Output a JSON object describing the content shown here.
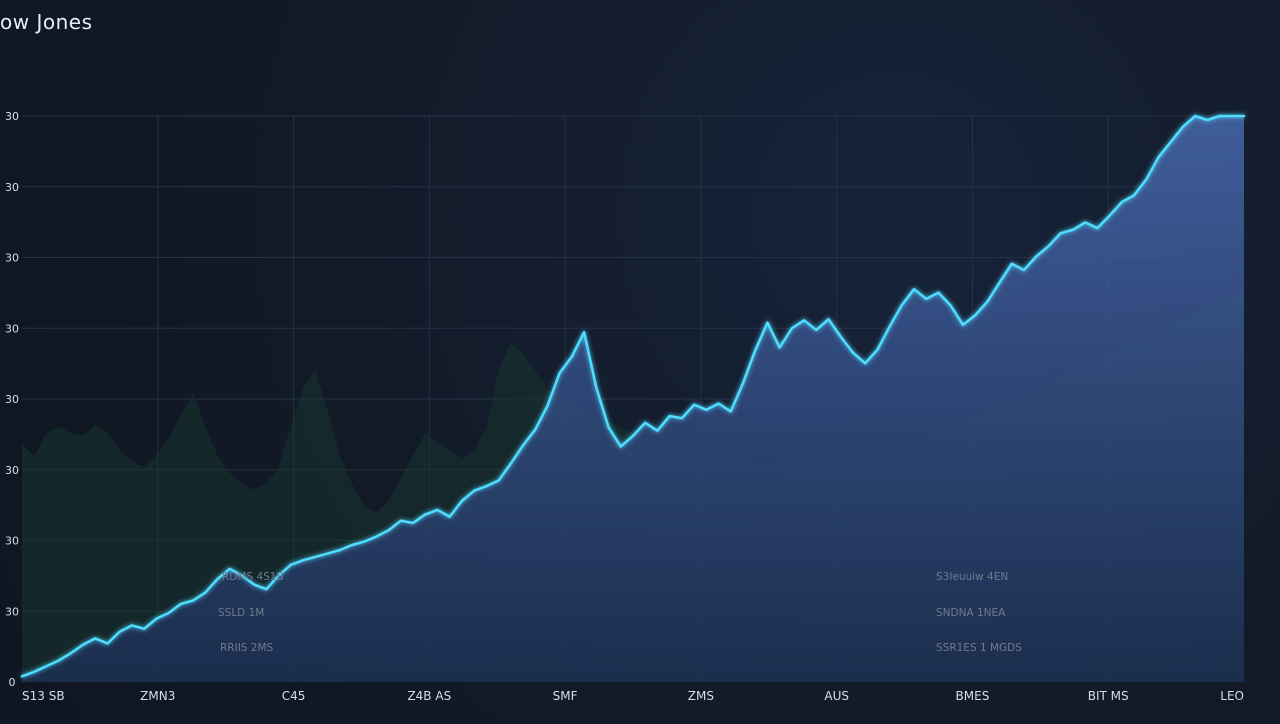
{
  "chart_data": {
    "type": "area",
    "title": "ow Jones",
    "xlabel": "",
    "ylabel": "",
    "y_ticks": [
      "0",
      "30",
      "30",
      "30",
      "30",
      "30",
      "30",
      "30",
      "30"
    ],
    "x_ticks": [
      "S13 SB",
      "ZMN3",
      "C45",
      "Z4B AS",
      "SMF",
      "ZMS",
      "AUS",
      "BMES",
      "BIT MS",
      "LEO"
    ],
    "annotations_left": [
      "RDMS 4S1B",
      "SSLD 1M",
      "RRIIS 2MS"
    ],
    "annotations_right": [
      "S3Ieuuiw 4EN",
      "SNDNA 1NEA",
      "SSR1ES 1 MGDS"
    ],
    "grid": true,
    "xlim": [
      0,
      1
    ],
    "ylim": [
      0,
      100
    ],
    "x": [
      0.0,
      0.01,
      0.02,
      0.03,
      0.04,
      0.05,
      0.06,
      0.07,
      0.08,
      0.09,
      0.1,
      0.11,
      0.12,
      0.13,
      0.14,
      0.15,
      0.16,
      0.17,
      0.18,
      0.19,
      0.2,
      0.21,
      0.22,
      0.23,
      0.24,
      0.25,
      0.26,
      0.27,
      0.28,
      0.29,
      0.3,
      0.31,
      0.32,
      0.33,
      0.34,
      0.35,
      0.36,
      0.37,
      0.38,
      0.39,
      0.4,
      0.41,
      0.42,
      0.43,
      0.44,
      0.45,
      0.46,
      0.47,
      0.48,
      0.49,
      0.5,
      0.51,
      0.52,
      0.53,
      0.54,
      0.55,
      0.56,
      0.57,
      0.58,
      0.59,
      0.6,
      0.61,
      0.62,
      0.63,
      0.64,
      0.65,
      0.66,
      0.67,
      0.68,
      0.69,
      0.7,
      0.71,
      0.72,
      0.73,
      0.74,
      0.75,
      0.76,
      0.77,
      0.78,
      0.79,
      0.8,
      0.81,
      0.82,
      0.83,
      0.84,
      0.85,
      0.86,
      0.87,
      0.88,
      0.89,
      0.9,
      0.91,
      0.92,
      0.93,
      0.94,
      0.95,
      0.96,
      0.97,
      0.98,
      0.99,
      1.0
    ],
    "values": [
      1.0,
      1.8,
      2.8,
      3.8,
      5.1,
      6.6,
      7.7,
      6.8,
      8.9,
      10.0,
      9.4,
      11.2,
      12.2,
      13.8,
      14.4,
      15.8,
      18.2,
      20.0,
      18.8,
      17.2,
      16.4,
      18.8,
      20.7,
      21.5,
      22.1,
      22.7,
      23.3,
      24.2,
      24.8,
      25.7,
      26.8,
      28.5,
      28.1,
      29.6,
      30.4,
      29.2,
      32.0,
      33.8,
      34.6,
      35.6,
      38.6,
      41.8,
      44.6,
      48.8,
      54.6,
      57.5,
      61.8,
      52.0,
      45.0,
      41.6,
      43.5,
      45.8,
      44.4,
      47.0,
      46.6,
      49.0,
      48.1,
      49.2,
      47.8,
      52.8,
      58.6,
      63.5,
      59.1,
      62.5,
      63.9,
      62.2,
      64.1,
      61.0,
      58.2,
      56.3,
      58.7,
      62.8,
      66.6,
      69.4,
      67.7,
      68.8,
      66.5,
      63.1,
      64.8,
      67.2,
      70.6,
      73.9,
      72.8,
      75.2,
      77.0,
      79.3,
      79.9,
      81.2,
      80.2,
      82.4,
      84.8,
      86.0,
      88.8,
      92.7,
      95.4,
      98.1,
      100.0,
      99.3,
      100.0,
      100.0,
      100.0
    ],
    "background_values": [
      42.0,
      40.0,
      44.0,
      45.0,
      44.0,
      43.5,
      45.5,
      44.0,
      41.0,
      39.0,
      38.0,
      40.0,
      43.0,
      47.0,
      51.0,
      45.0,
      40.0,
      37.0,
      35.0,
      34.0,
      35.0,
      38.0,
      45.0,
      52.0,
      55.0,
      48.0,
      40.0,
      35.0,
      31.0,
      30.0,
      32.0,
      36.0,
      40.0,
      44.0,
      42.5,
      41.0,
      39.5,
      41.0,
      45.0,
      55.0,
      60.0,
      58.0,
      55.0,
      52.0,
      50.0,
      49.0,
      48.0,
      47.0,
      46.0,
      45.0,
      44.0,
      43.0,
      42.0,
      41.5,
      41.0,
      40.5,
      40.0,
      40.0,
      39.5,
      39.0,
      38.5,
      38.0,
      38.0,
      38.0,
      38.0,
      38.0,
      38.0,
      38.0,
      38.5,
      39.0,
      39.5,
      40.0,
      41.0,
      42.0,
      43.0,
      44.0,
      45.0,
      46.0,
      47.0,
      48.0,
      49.0,
      50.0,
      51.0,
      52.0,
      53.0,
      54.0,
      55.0,
      56.0,
      57.0,
      58.0,
      59.0,
      60.0,
      61.0,
      62.0,
      63.0,
      64.0,
      65.0,
      66.0,
      67.0,
      68.0,
      69.0
    ],
    "colors": {
      "line": "#4fdcff",
      "fill_top": "#4b6fb8",
      "fill_bottom": "#1d2f57",
      "background_mountain": "#18342f",
      "grid": "#253246",
      "tick_text": "#d8dee8",
      "annotation_text": "#6d7b8f"
    }
  }
}
